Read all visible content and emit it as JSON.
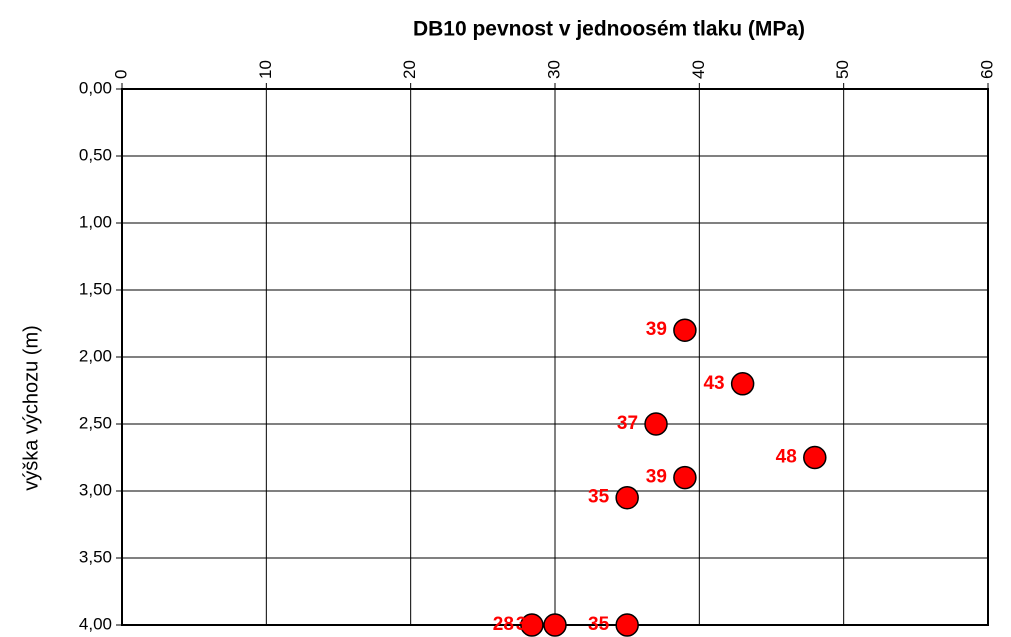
{
  "chart_data": {
    "type": "scatter",
    "title": "DB10 pevnost v jednoosém tlaku (MPa)",
    "ylabel": "výška výchozu (m)",
    "values": [
      39,
      43,
      37,
      48,
      39,
      35,
      28.4,
      30,
      35
    ],
    "value_labels": [
      "39",
      "43",
      "37",
      "48",
      "39",
      "35",
      "28",
      "30",
      "35"
    ],
    "y": [
      1.8,
      2.2,
      2.5,
      2.75,
      2.9,
      3.05,
      4.0,
      4.0,
      4.0
    ],
    "color": "#ff0000",
    "label_color": "#ff0000",
    "xlim": [
      0,
      60
    ],
    "xticks": [
      0,
      10,
      20,
      30,
      40,
      50,
      60
    ],
    "ylim": [
      0,
      4
    ],
    "y_inverted": true,
    "yticks": [
      {
        "value": 0,
        "label": "0,00"
      },
      {
        "value": 0.5,
        "label": "0,50"
      },
      {
        "value": 1,
        "label": "1,00"
      },
      {
        "value": 1.5,
        "label": "1,50"
      },
      {
        "value": 2,
        "label": "2,00"
      },
      {
        "value": 2.5,
        "label": "2,50"
      },
      {
        "value": 3,
        "label": "3,00"
      },
      {
        "value": 3.5,
        "label": "3,50"
      },
      {
        "value": 4,
        "label": "4,00"
      }
    ],
    "grid": true
  }
}
